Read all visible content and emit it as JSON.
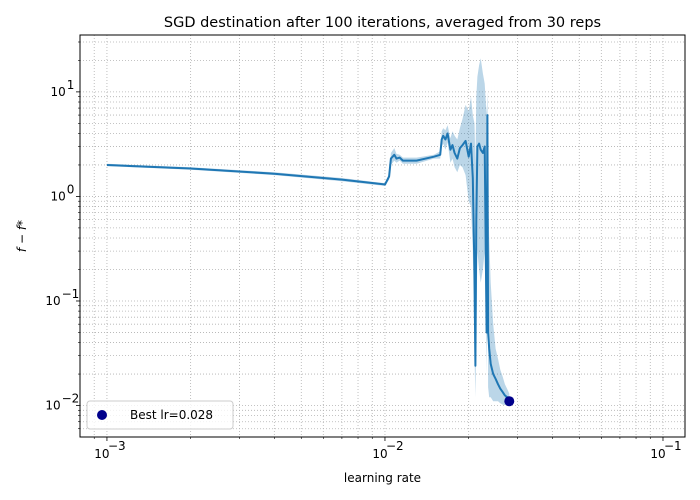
{
  "chart_data": {
    "type": "line",
    "title": "SGD destination after 100 iterations, averaged from 30 reps",
    "xlabel": "learning rate",
    "ylabel": "f − f*",
    "xscale": "log",
    "yscale": "log",
    "xlim": [
      0.0008,
      0.12
    ],
    "ylim": [
      0.005,
      35
    ],
    "grid": "both",
    "x_ticks": [
      {
        "value": 0.001,
        "base": "10",
        "exp": "−3"
      },
      {
        "value": 0.01,
        "base": "10",
        "exp": "−2"
      },
      {
        "value": 0.1,
        "base": "10",
        "exp": "−1"
      }
    ],
    "y_ticks": [
      {
        "value": 0.01,
        "base": "10",
        "exp": "−2"
      },
      {
        "value": 0.1,
        "base": "10",
        "exp": "−1"
      },
      {
        "value": 1,
        "base": "10",
        "exp": "0"
      },
      {
        "value": 10,
        "base": "10",
        "exp": "1"
      }
    ],
    "series": [
      {
        "color": "#1f77b4",
        "x": [
          0.001,
          0.002,
          0.004,
          0.007,
          0.0095,
          0.01,
          0.01035,
          0.0105,
          0.0108,
          0.011,
          0.0113,
          0.0116,
          0.013,
          0.015,
          0.0158,
          0.016,
          0.0162,
          0.0165,
          0.0168,
          0.0172,
          0.0175,
          0.0178,
          0.0182,
          0.0186,
          0.019,
          0.0195,
          0.02,
          0.0204,
          0.0207,
          0.021,
          0.02115,
          0.0213,
          0.0215,
          0.0218,
          0.0221,
          0.0225,
          0.02285,
          0.0232,
          0.02335,
          0.0235,
          0.0237,
          0.024,
          0.0245,
          0.025,
          0.0255,
          0.026,
          0.0265,
          0.027,
          0.0275,
          0.028
        ],
        "y": [
          2.0,
          1.85,
          1.65,
          1.45,
          1.32,
          1.3,
          1.55,
          2.3,
          2.5,
          2.3,
          2.35,
          2.2,
          2.2,
          2.4,
          2.5,
          3.5,
          3.8,
          3.5,
          4.0,
          2.8,
          3.1,
          2.6,
          2.3,
          2.9,
          3.1,
          3.4,
          2.4,
          3.2,
          1.5,
          0.18,
          0.024,
          0.6,
          3.0,
          3.2,
          2.8,
          2.6,
          3.0,
          0.05,
          6.0,
          0.05,
          0.035,
          0.025,
          0.02,
          0.018,
          0.016,
          0.0145,
          0.0135,
          0.0125,
          0.012,
          0.011
        ],
        "upper": [
          2.05,
          1.9,
          1.7,
          1.5,
          1.36,
          1.34,
          1.65,
          2.6,
          2.9,
          2.55,
          2.5,
          2.35,
          2.35,
          2.5,
          2.7,
          4.2,
          4.5,
          4.3,
          4.8,
          3.6,
          4.2,
          3.8,
          3.5,
          4.5,
          5.5,
          7.5,
          6.5,
          9.0,
          6.0,
          5.0,
          2.0,
          9.0,
          14.0,
          18.0,
          21.0,
          15.0,
          12.0,
          6.0,
          10.0,
          1.0,
          0.4,
          0.15,
          0.06,
          0.035,
          0.028,
          0.022,
          0.019,
          0.016,
          0.0145,
          0.013
        ],
        "lower": [
          1.95,
          1.8,
          1.6,
          1.4,
          1.28,
          1.26,
          1.45,
          2.0,
          2.2,
          2.1,
          2.2,
          2.05,
          2.05,
          2.3,
          2.3,
          3.0,
          3.2,
          2.8,
          3.3,
          2.1,
          2.3,
          1.9,
          1.7,
          2.0,
          1.9,
          1.6,
          0.9,
          0.8,
          0.3,
          0.03,
          0.012,
          0.05,
          0.3,
          0.2,
          0.15,
          0.2,
          0.3,
          0.02,
          2.5,
          0.015,
          0.012,
          0.012,
          0.011,
          0.011,
          0.011,
          0.0105,
          0.0102,
          0.0101,
          0.0101,
          0.0101
        ]
      }
    ],
    "best_point": {
      "x": 0.028,
      "y": 0.011,
      "color": "#00008b"
    },
    "legend": {
      "label": "Best lr=0.028",
      "position": "lower-left"
    }
  }
}
